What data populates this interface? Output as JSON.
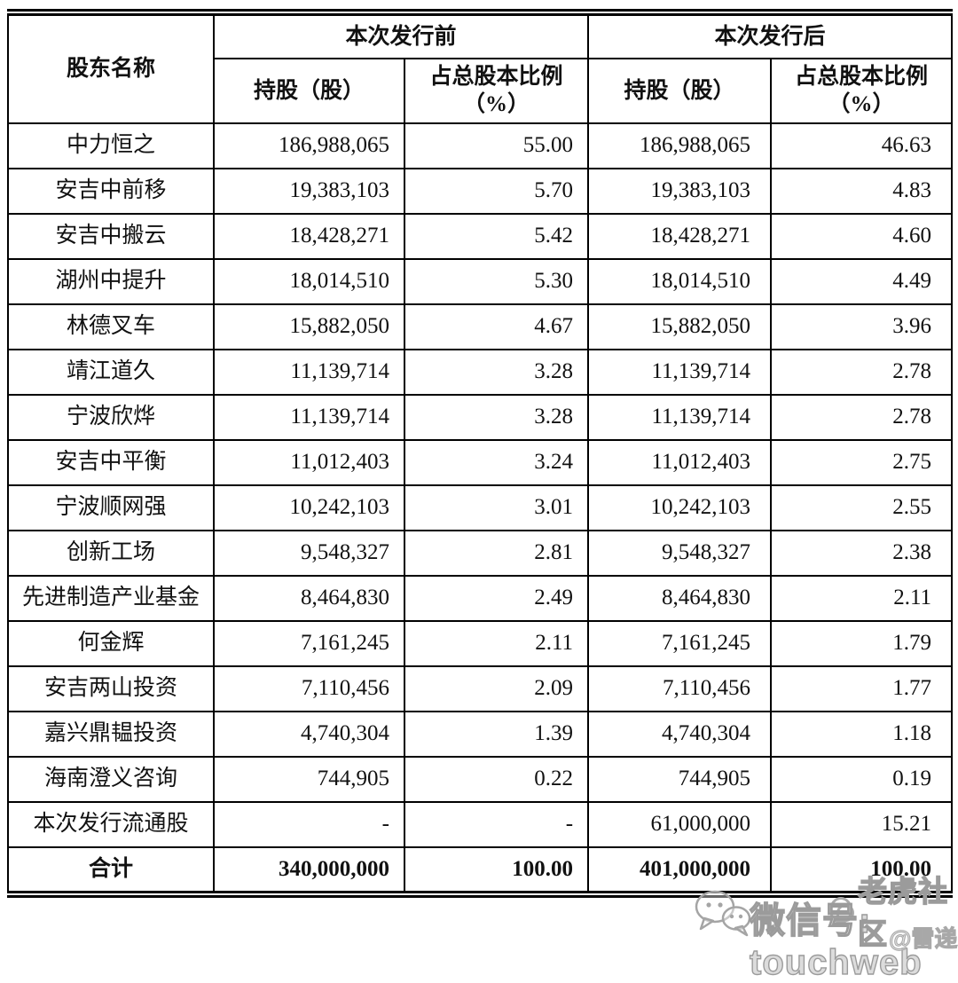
{
  "table": {
    "header": {
      "shareholder": "股东名称",
      "before_group": "本次发行前",
      "after_group": "本次发行后",
      "shares_label": "持股（股）",
      "ratio_label_line1": "占总股本比例",
      "ratio_label_line2": "（%）"
    },
    "rows": [
      {
        "name": "中力恒之",
        "before_shares": "186,988,065",
        "before_pct": "55.00",
        "after_shares": "186,988,065",
        "after_pct": "46.63"
      },
      {
        "name": "安吉中前移",
        "before_shares": "19,383,103",
        "before_pct": "5.70",
        "after_shares": "19,383,103",
        "after_pct": "4.83"
      },
      {
        "name": "安吉中搬云",
        "before_shares": "18,428,271",
        "before_pct": "5.42",
        "after_shares": "18,428,271",
        "after_pct": "4.60"
      },
      {
        "name": "湖州中提升",
        "before_shares": "18,014,510",
        "before_pct": "5.30",
        "after_shares": "18,014,510",
        "after_pct": "4.49"
      },
      {
        "name": "林德叉车",
        "before_shares": "15,882,050",
        "before_pct": "4.67",
        "after_shares": "15,882,050",
        "after_pct": "3.96"
      },
      {
        "name": "靖江道久",
        "before_shares": "11,139,714",
        "before_pct": "3.28",
        "after_shares": "11,139,714",
        "after_pct": "2.78"
      },
      {
        "name": "宁波欣烨",
        "before_shares": "11,139,714",
        "before_pct": "3.28",
        "after_shares": "11,139,714",
        "after_pct": "2.78"
      },
      {
        "name": "安吉中平衡",
        "before_shares": "11,012,403",
        "before_pct": "3.24",
        "after_shares": "11,012,403",
        "after_pct": "2.75"
      },
      {
        "name": "宁波顺网强",
        "before_shares": "10,242,103",
        "before_pct": "3.01",
        "after_shares": "10,242,103",
        "after_pct": "2.55"
      },
      {
        "name": "创新工场",
        "before_shares": "9,548,327",
        "before_pct": "2.81",
        "after_shares": "9,548,327",
        "after_pct": "2.38"
      },
      {
        "name": "先进制造产业基金",
        "before_shares": "8,464,830",
        "before_pct": "2.49",
        "after_shares": "8,464,830",
        "after_pct": "2.11"
      },
      {
        "name": "何金辉",
        "before_shares": "7,161,245",
        "before_pct": "2.11",
        "after_shares": "7,161,245",
        "after_pct": "1.79"
      },
      {
        "name": "安吉两山投资",
        "before_shares": "7,110,456",
        "before_pct": "2.09",
        "after_shares": "7,110,456",
        "after_pct": "1.77"
      },
      {
        "name": "嘉兴鼎韫投资",
        "before_shares": "4,740,304",
        "before_pct": "1.39",
        "after_shares": "4,740,304",
        "after_pct": "1.18"
      },
      {
        "name": "海南澄义咨询",
        "before_shares": "744,905",
        "before_pct": "0.22",
        "after_shares": "744,905",
        "after_pct": "0.19"
      },
      {
        "name": "本次发行流通股",
        "before_shares": "-",
        "before_pct": "-",
        "after_shares": "61,000,000",
        "after_pct": "15.21"
      }
    ],
    "total": {
      "name": "合计",
      "before_shares": "340,000,000",
      "before_pct": "100.00",
      "after_shares": "401,000,000",
      "after_pct": "100.00"
    }
  },
  "watermark": {
    "wechat_label": "微信号: touchweb",
    "community_label": "老虎社区",
    "handle": "@雷递",
    "icon": "wechat-bubbles-icon",
    "color": "#9b9b9b"
  }
}
